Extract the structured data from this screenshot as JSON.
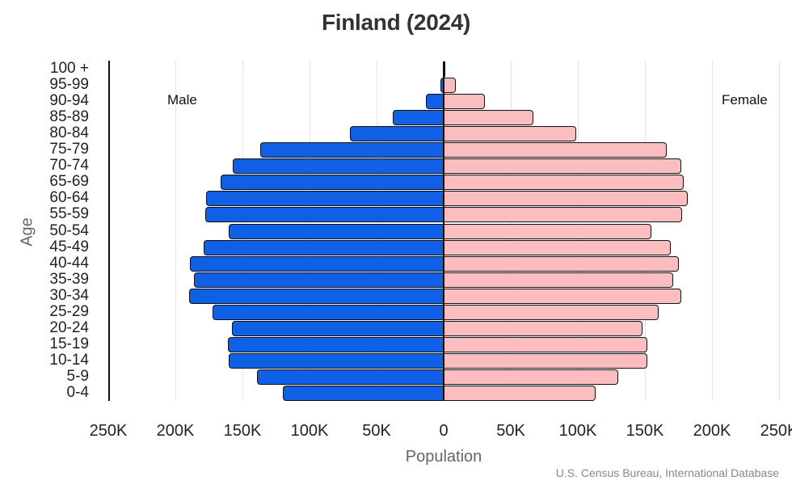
{
  "chart_data": {
    "type": "bar",
    "orientation": "horizontal",
    "subtype": "population-pyramid",
    "title": "Finland (2024)",
    "xlabel": "Population",
    "ylabel": "Age",
    "source": "U.S. Census Bureau, International Database",
    "xlim": [
      -250000,
      250000
    ],
    "xticks": [
      {
        "value": -250000,
        "label": "250K"
      },
      {
        "value": -200000,
        "label": "200K"
      },
      {
        "value": -150000,
        "label": "150K"
      },
      {
        "value": -100000,
        "label": "100K"
      },
      {
        "value": -50000,
        "label": "50K"
      },
      {
        "value": 0,
        "label": "0"
      },
      {
        "value": 50000,
        "label": "50K"
      },
      {
        "value": 100000,
        "label": "100K"
      },
      {
        "value": 150000,
        "label": "150K"
      },
      {
        "value": 200000,
        "label": "200K"
      },
      {
        "value": 250000,
        "label": "250K"
      }
    ],
    "grid": true,
    "legend": {
      "left_label": "Male",
      "right_label": "Female"
    },
    "categories": [
      "100 +",
      "95-99",
      "90-94",
      "85-89",
      "80-84",
      "75-79",
      "70-74",
      "65-69",
      "60-64",
      "55-59",
      "50-54",
      "45-49",
      "40-44",
      "35-39",
      "30-34",
      "25-29",
      "20-24",
      "15-19",
      "10-14",
      "5-9",
      "0-4"
    ],
    "series": [
      {
        "name": "Male",
        "color": "#1060e6",
        "values": [
          100,
          2500,
          13000,
          38000,
          70000,
          137000,
          157000,
          166000,
          177000,
          178000,
          160000,
          179000,
          189000,
          186000,
          190000,
          172000,
          158000,
          161000,
          160000,
          139000,
          120000
        ]
      },
      {
        "name": "Female",
        "color": "#fbbdbd",
        "values": [
          500,
          9000,
          31000,
          67000,
          99000,
          166000,
          177000,
          179000,
          182000,
          178000,
          155000,
          169000,
          175000,
          171000,
          177000,
          160000,
          148000,
          152000,
          152000,
          130000,
          113000
        ]
      }
    ]
  }
}
